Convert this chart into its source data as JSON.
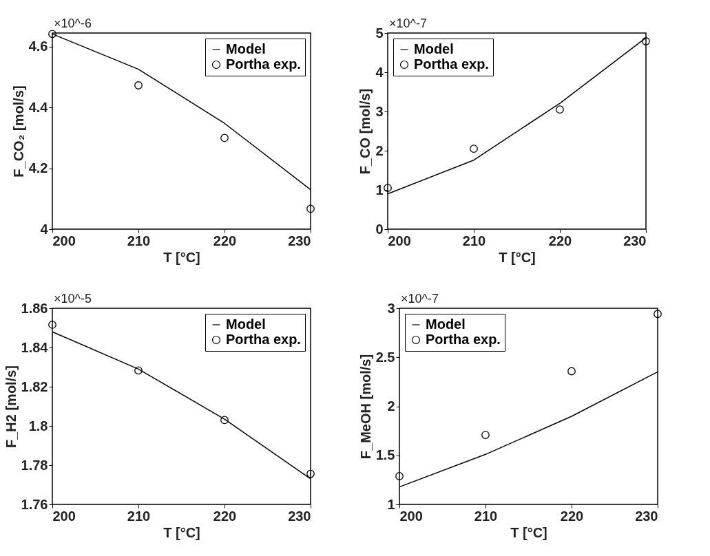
{
  "chart_data": [
    {
      "type": "line",
      "xlabel": "T [°C]",
      "ylabel": "F_CO₂ [mol/s]",
      "annotations": [
        "×10^-6"
      ],
      "x": [
        200,
        210,
        220,
        230
      ],
      "xlim": [
        200,
        230
      ],
      "xticks": [
        200,
        210,
        220,
        230
      ],
      "ylim": [
        4,
        4.645
      ],
      "yticks": [
        4,
        4.2,
        4.4,
        4.6
      ],
      "grid": false,
      "legend": "top right",
      "series": [
        {
          "name": "Model",
          "type": "line",
          "color": "#000000",
          "line_style": "solid",
          "values": [
            4.642,
            4.526,
            4.348,
            4.13
          ]
        },
        {
          "name": "Portha exp.",
          "type": "scatter",
          "marker": "circle",
          "color": "#000000",
          "values": [
            4.642,
            4.473,
            4.3,
            4.067
          ]
        }
      ]
    },
    {
      "type": "line",
      "xlabel": "T [°C]",
      "ylabel": "F_CO [mol/s]",
      "annotations": [
        "×10^-7"
      ],
      "x": [
        200,
        210,
        220,
        230
      ],
      "xlim": [
        200,
        230
      ],
      "xticks": [
        200,
        210,
        220,
        230
      ],
      "ylim": [
        0,
        5
      ],
      "yticks": [
        0,
        1,
        2,
        3,
        4,
        5
      ],
      "grid": false,
      "legend": "top left",
      "series": [
        {
          "name": "Model",
          "type": "line",
          "color": "#000000",
          "line_style": "solid",
          "values": [
            0.9,
            1.76,
            3.21,
            4.88
          ]
        },
        {
          "name": "Portha exp.",
          "type": "scatter",
          "marker": "circle",
          "color": "#000000",
          "values": [
            1.05,
            2.05,
            3.05,
            4.79
          ]
        }
      ]
    },
    {
      "type": "line",
      "xlabel": "T [°C]",
      "ylabel": "F_H2 [mol/s]",
      "annotations": [
        "×10^-5"
      ],
      "x": [
        200,
        210,
        220,
        230
      ],
      "xlim": [
        200,
        230
      ],
      "xticks": [
        200,
        210,
        220,
        230
      ],
      "ylim": [
        1.76,
        1.86
      ],
      "yticks": [
        1.76,
        1.78,
        1.8,
        1.82,
        1.84,
        1.86
      ],
      "grid": false,
      "legend": "top right",
      "series": [
        {
          "name": "Model",
          "type": "line",
          "color": "#000000",
          "line_style": "solid",
          "values": [
            1.848,
            1.829,
            1.8035,
            1.773
          ]
        },
        {
          "name": "Portha exp.",
          "type": "scatter",
          "marker": "circle",
          "color": "#000000",
          "values": [
            1.8516,
            1.8283,
            1.803,
            1.7756
          ]
        }
      ]
    },
    {
      "type": "line",
      "xlabel": "T [°C]",
      "ylabel": "F_MeOH [mol/s]",
      "annotations": [
        "×10^-7"
      ],
      "x": [
        200,
        210,
        220,
        230
      ],
      "xlim": [
        200,
        230
      ],
      "xticks": [
        200,
        210,
        220,
        230
      ],
      "ylim": [
        1,
        3
      ],
      "yticks": [
        1,
        1.5,
        2,
        2.5,
        3
      ],
      "grid": false,
      "legend": "top left",
      "series": [
        {
          "name": "Model",
          "type": "line",
          "color": "#000000",
          "line_style": "solid",
          "values": [
            1.178,
            1.51,
            1.898,
            2.352
          ]
        },
        {
          "name": "Portha exp.",
          "type": "scatter",
          "marker": "circle",
          "color": "#000000",
          "values": [
            1.288,
            1.708,
            2.358,
            2.942
          ]
        }
      ]
    }
  ]
}
